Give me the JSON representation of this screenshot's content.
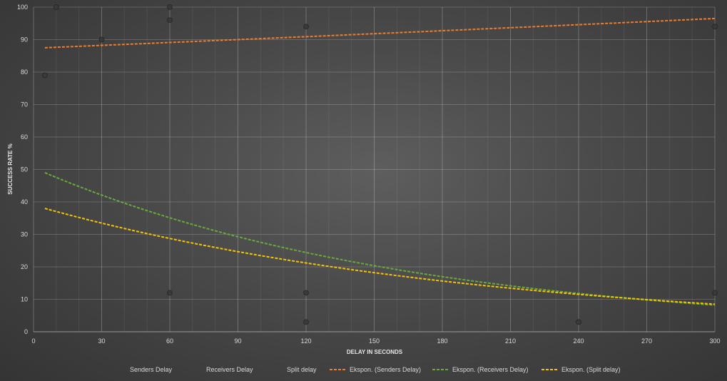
{
  "chart_data": {
    "type": "scatter",
    "title": "",
    "xlabel": "DELAY IN SECONDS",
    "ylabel": "SUCCESS RATE %",
    "xlim": [
      0,
      300
    ],
    "ylim": [
      0,
      100
    ],
    "x_ticks": [
      0,
      30,
      60,
      90,
      120,
      150,
      180,
      210,
      240,
      270,
      300
    ],
    "y_ticks": [
      0,
      10,
      20,
      30,
      40,
      50,
      60,
      70,
      80,
      90,
      100
    ],
    "grid": true,
    "legend_position": "bottom",
    "series": [
      {
        "name": "Senders Delay",
        "kind": "points",
        "color": "#3a3a3a",
        "points": [
          [
            5,
            79
          ],
          [
            10,
            100
          ],
          [
            30,
            90
          ],
          [
            60,
            100
          ],
          [
            60,
            96
          ],
          [
            120,
            94
          ],
          [
            300,
            94
          ]
        ]
      },
      {
        "name": "Receivers Delay",
        "kind": "points",
        "color": "#3a3a3a",
        "points": [
          [
            60,
            12
          ],
          [
            120,
            12
          ],
          [
            300,
            12
          ]
        ]
      },
      {
        "name": "Split delay",
        "kind": "points",
        "color": "#3a3a3a",
        "points": [
          [
            120,
            3
          ],
          [
            240,
            3
          ]
        ]
      },
      {
        "name": "Ekspon. (Senders Delay)",
        "kind": "trend",
        "color": "#f07c2c",
        "x": [
          5,
          300
        ],
        "y": [
          87.5,
          96.5
        ]
      },
      {
        "name": "Ekspon. (Receivers Delay)",
        "kind": "trend",
        "color": "#6aaa3a",
        "x": [
          5,
          300
        ],
        "y": [
          49,
          8.2
        ]
      },
      {
        "name": "Ekspon. (Split delay)",
        "kind": "trend",
        "color": "#f5c400",
        "x": [
          5,
          300
        ],
        "y": [
          38,
          8.5
        ]
      }
    ]
  }
}
